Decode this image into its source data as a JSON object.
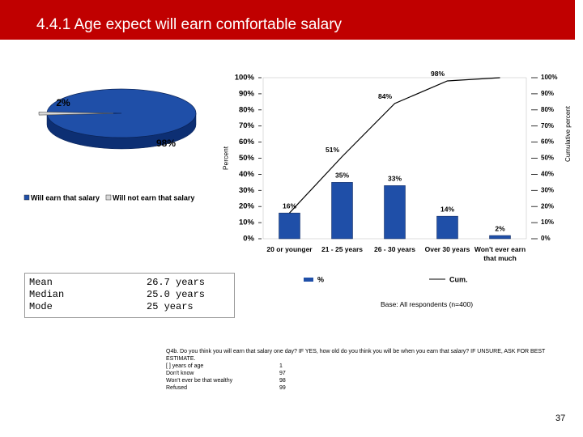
{
  "title": "4.4.1 Age expect will earn comfortable salary",
  "chart_data": [
    {
      "type": "pie",
      "categories": [
        "Will earn that salary",
        "Will not earn that salary"
      ],
      "values": [
        98,
        2
      ],
      "value_labels": [
        "98%",
        "2%"
      ],
      "colors": [
        "#1f4fa8",
        "#d9d9d9"
      ]
    },
    {
      "type": "bar",
      "categories": [
        "20 or younger",
        "21 - 25 years",
        "26 - 30 years",
        "Over 30 years",
        "Won't ever earn that much"
      ],
      "ylabel": "Percent",
      "y2label": "Cumulative percent",
      "ylim": [
        0,
        100
      ],
      "yticks": [
        {
          "value": 0,
          "label": "0%"
        },
        {
          "value": 10,
          "label": "10%"
        },
        {
          "value": 20,
          "label": "20%"
        },
        {
          "value": 30,
          "label": "30%"
        },
        {
          "value": 40,
          "label": "40%"
        },
        {
          "value": 50,
          "label": "50%"
        },
        {
          "value": 60,
          "label": "60%"
        },
        {
          "value": 70,
          "label": "70%"
        },
        {
          "value": 80,
          "label": "80%"
        },
        {
          "value": 90,
          "label": "90%"
        },
        {
          "value": 100,
          "label": "100%"
        }
      ],
      "y2lim": [
        0,
        100
      ],
      "y2ticks": [
        {
          "value": 0,
          "label": "0%"
        },
        {
          "value": 10,
          "label": "10%"
        },
        {
          "value": 20,
          "label": "20%"
        },
        {
          "value": 30,
          "label": "30%"
        },
        {
          "value": 40,
          "label": "40%"
        },
        {
          "value": 50,
          "label": "50%"
        },
        {
          "value": 60,
          "label": "60%"
        },
        {
          "value": 70,
          "label": "70%"
        },
        {
          "value": 80,
          "label": "80%"
        },
        {
          "value": 90,
          "label": "90%"
        },
        {
          "value": 100,
          "label": "100%"
        }
      ],
      "series": [
        {
          "name": "%",
          "type": "bar",
          "color": "#1f4fa8",
          "values": [
            16,
            35,
            33,
            14,
            2
          ],
          "value_labels": [
            "16%",
            "35%",
            "33%",
            "14%",
            "2%"
          ]
        },
        {
          "name": "Cum.",
          "type": "line",
          "axis": "y2",
          "color": "#000000",
          "values": [
            16,
            51,
            84,
            98,
            100
          ],
          "value_labels": [
            null,
            "51%",
            "84%",
            "98%",
            null
          ]
        }
      ]
    }
  ],
  "stats": [
    [
      "Mean",
      "26.7 years"
    ],
    [
      "Median",
      "25.0 years"
    ],
    [
      "Mode",
      "25 years"
    ]
  ],
  "base": "Base: All respondents (n=400)",
  "question": {
    "text": "Q4b.  Do you think you will earn that salary one day?  IF YES, how old do you think you will be when you earn that salary? IF UNSURE, ASK FOR BEST ESTIMATE.",
    "codes": [
      [
        "[            ] years of age",
        "1"
      ],
      [
        "Don't know",
        "97"
      ],
      [
        "Won't ever be that wealthy",
        "98"
      ],
      [
        "Refused",
        "99"
      ]
    ]
  },
  "page_number": "37"
}
